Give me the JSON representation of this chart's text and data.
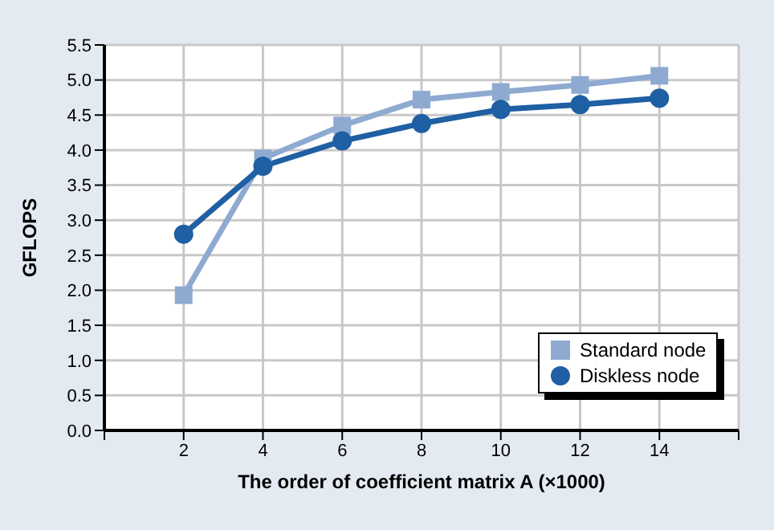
{
  "chart_data": {
    "type": "line",
    "xlabel": "The order of coefficient matrix A (×1000)",
    "ylabel": "GFLOPS",
    "x": [
      2,
      4,
      6,
      8,
      10,
      12,
      14
    ],
    "series": [
      {
        "name": "Standard node",
        "color": "#8eaad0",
        "marker": "square",
        "values": [
          1.93,
          3.88,
          4.35,
          4.72,
          4.83,
          4.93,
          5.06
        ]
      },
      {
        "name": "Diskless node",
        "color": "#1f5fa3",
        "marker": "circle",
        "values": [
          2.8,
          3.77,
          4.13,
          4.38,
          4.58,
          4.65,
          4.74
        ]
      }
    ],
    "xlim": [
      0,
      16
    ],
    "xticks": [
      {
        "value": 0,
        "label": null
      },
      2,
      4,
      6,
      8,
      10,
      12,
      14,
      {
        "value": 16,
        "label": null
      }
    ],
    "ylim": [
      0,
      5.5
    ],
    "yticks": [
      {
        "value": 0,
        "label": "0.0"
      },
      0.5,
      {
        "value": 1,
        "label": "1.0"
      },
      1.5,
      {
        "value": 2,
        "label": "2.0"
      },
      2.5,
      {
        "value": 3,
        "label": "3.0"
      },
      3.5,
      {
        "value": 4,
        "label": "4.0"
      },
      4.5,
      {
        "value": 5,
        "label": "5.0"
      },
      5.5
    ],
    "grid": true,
    "legend": "bottom right",
    "line_style": "solid"
  }
}
